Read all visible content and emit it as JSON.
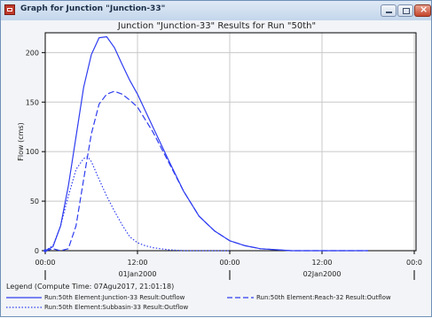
{
  "window": {
    "title": "Graph for Junction \"Junction-33\""
  },
  "colors": {
    "series": "#2f3df0",
    "grid": "#c8c8c8",
    "frame": "#000000"
  },
  "chart_data": {
    "type": "line",
    "title": "Junction \"Junction-33\" Results for Run \"50th\"",
    "ylabel": "Flow (cms)",
    "xlabel": "",
    "ylim": [
      0,
      220
    ],
    "xlim": [
      0,
      42
    ],
    "yticks": [
      0,
      50,
      100,
      150,
      200
    ],
    "ytick_labels": [
      "0",
      "50",
      "100",
      "150",
      "200"
    ],
    "xticks": [
      0,
      12,
      24,
      36,
      48
    ],
    "xtick_labels": [
      "00:00",
      "12:00",
      "00:00",
      "12:00",
      "00:0"
    ],
    "date_labels": [
      {
        "x": 12,
        "text": "01Jan2000"
      },
      {
        "x": 36,
        "text": "02Jan2000"
      }
    ],
    "grid": true,
    "series": [
      {
        "name": "Run:50th Element:Junction-33 Result:Outflow",
        "style": "solid",
        "x": [
          0,
          1,
          2,
          3,
          4,
          5,
          6,
          7,
          8,
          9,
          10,
          11,
          12,
          14,
          16,
          18,
          20,
          22,
          24,
          26,
          28,
          30,
          32,
          34,
          38,
          42
        ],
        "y": [
          0,
          4,
          25,
          65,
          115,
          165,
          198,
          215,
          216,
          205,
          188,
          172,
          158,
          125,
          92,
          60,
          35,
          20,
          10,
          5,
          2,
          1,
          0,
          0,
          0,
          0
        ]
      },
      {
        "name": "Run:50th Element:Reach-32 Result:Outflow",
        "style": "dashed",
        "x": [
          0,
          1,
          2,
          3,
          4,
          5,
          6,
          7,
          8,
          9,
          10,
          11,
          12,
          14,
          16,
          18,
          20,
          22,
          24,
          26,
          28,
          30,
          32,
          34,
          38,
          42
        ],
        "y": [
          0,
          2,
          0,
          2,
          25,
          72,
          118,
          148,
          158,
          161,
          158,
          152,
          145,
          120,
          90,
          60,
          35,
          20,
          10,
          5,
          2,
          1,
          0,
          0,
          0,
          0
        ]
      },
      {
        "name": "Run:50th Element:Subbasin-33 Result:Outflow",
        "style": "dotted",
        "x": [
          0,
          1,
          2,
          3,
          4,
          5,
          5.5,
          6,
          7,
          8,
          9,
          10,
          11,
          12,
          13,
          14,
          15,
          16,
          18,
          20,
          22,
          24
        ],
        "y": [
          0,
          5,
          25,
          55,
          82,
          93,
          95,
          90,
          72,
          55,
          40,
          26,
          14,
          8,
          5,
          3,
          2,
          1,
          0,
          0,
          0,
          0
        ]
      }
    ],
    "legend": {
      "title": "Legend (Compute Time: 07Agu2017, 21:01:18)",
      "placement": "bottom"
    }
  }
}
